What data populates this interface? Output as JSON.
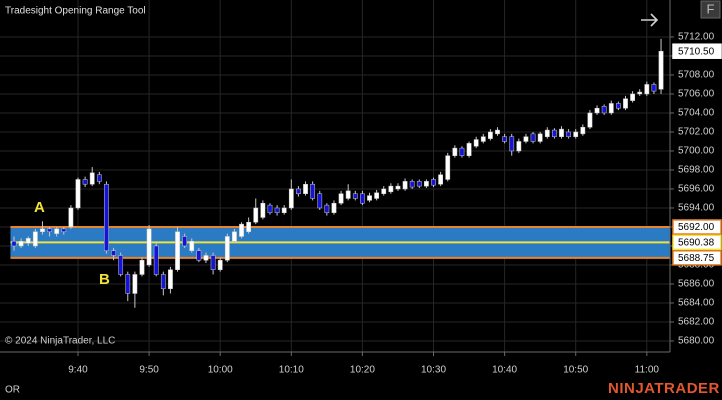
{
  "toolbar": {
    "button": "F"
  },
  "footer": {
    "copyright": "© 2024 NinjaTrader, LLC",
    "status": "OR",
    "brand": "NINJATRADER"
  },
  "annotations": [
    "A",
    "B"
  ],
  "chart_data": {
    "type": "candlestick",
    "title": "Tradesight Opening Range Tool",
    "up_color": "#ffffff",
    "down_color": "#1414d2",
    "wick_color": "#c8c8c8",
    "grid": true,
    "x": [
      571,
      572,
      573,
      574,
      575,
      576,
      577,
      578,
      579,
      580,
      581,
      582,
      583,
      584,
      585,
      586,
      587,
      588,
      589,
      590,
      591,
      592,
      593,
      594,
      595,
      596,
      597,
      598,
      599,
      600,
      601,
      602,
      603,
      604,
      605,
      606,
      607,
      608,
      609,
      610,
      611,
      612,
      613,
      614,
      615,
      616,
      617,
      618,
      619,
      620,
      621,
      622,
      623,
      624,
      625,
      626,
      627,
      628,
      629,
      630,
      631,
      632,
      633,
      634,
      635,
      636,
      637,
      638,
      639,
      640,
      641,
      642,
      643,
      644,
      645,
      646,
      647,
      648,
      649,
      650,
      651,
      652,
      653,
      654,
      655,
      656,
      657,
      658,
      659,
      660,
      661,
      662
    ],
    "open": [
      5690.5,
      5690.0,
      5690.3,
      5690.0,
      5691.5,
      5691.8,
      5691.3,
      5691.8,
      5692.0,
      5694.0,
      5697.0,
      5696.5,
      5697.5,
      5696.5,
      5689.5,
      5689.0,
      5687.0,
      5685.0,
      5687.0,
      5688.0,
      5690.0,
      5687.0,
      5685.5,
      5687.5,
      5691.0,
      5689.5,
      5689.5,
      5688.5,
      5689.0,
      5687.5,
      5688.5,
      5690.5,
      5691.0,
      5691.5,
      5692.5,
      5693.0,
      5694.3,
      5694.0,
      5693.5,
      5694.0,
      5696.0,
      5695.5,
      5696.5,
      5695.5,
      5694.3,
      5693.5,
      5694.5,
      5695.0,
      5695.5,
      5695.5,
      5694.8,
      5695.0,
      5695.5,
      5695.7,
      5696.0,
      5696.0,
      5696.8,
      5696.8,
      5696.3,
      5697.0,
      5696.5,
      5697.0,
      5699.5,
      5700.3,
      5699.5,
      5700.5,
      5701.0,
      5701.3,
      5701.8,
      5701.5,
      5701.5,
      5700.0,
      5701.0,
      5701.8,
      5701.0,
      5701.5,
      5702.2,
      5701.5,
      5702.0,
      5701.5,
      5701.8,
      5702.5,
      5704.0,
      5704.7,
      5704.0,
      5705.0,
      5704.5,
      5705.3,
      5706.0,
      5706.0,
      5707.0,
      5706.5
    ],
    "high": [
      5691.0,
      5690.8,
      5691.0,
      5691.8,
      5692.6,
      5692.0,
      5692.0,
      5692.0,
      5694.3,
      5697.2,
      5697.3,
      5698.3,
      5697.8,
      5696.8,
      5689.8,
      5689.3,
      5687.3,
      5687.3,
      5688.8,
      5692.2,
      5690.3,
      5687.3,
      5687.8,
      5692.0,
      5691.3,
      5690.8,
      5689.8,
      5689.3,
      5689.3,
      5688.8,
      5691.3,
      5691.8,
      5692.5,
      5693.0,
      5695.0,
      5694.8,
      5694.5,
      5694.3,
      5694.3,
      5697.0,
      5696.3,
      5696.8,
      5696.8,
      5695.8,
      5694.5,
      5694.8,
      5695.8,
      5696.5,
      5695.8,
      5695.8,
      5695.6,
      5695.9,
      5696.3,
      5696.6,
      5696.6,
      5697.1,
      5697.0,
      5697.0,
      5697.0,
      5697.2,
      5697.8,
      5699.8,
      5700.6,
      5700.5,
      5701.0,
      5701.5,
      5701.8,
      5702.3,
      5702.5,
      5701.8,
      5701.8,
      5701.3,
      5701.8,
      5702.0,
      5702.0,
      5702.5,
      5702.4,
      5702.6,
      5702.3,
      5702.3,
      5702.8,
      5704.3,
      5704.8,
      5704.9,
      5705.3,
      5705.2,
      5705.8,
      5706.3,
      5706.5,
      5707.3,
      5707.2,
      5711.8
    ],
    "low": [
      5689.5,
      5689.8,
      5690.0,
      5689.8,
      5691.2,
      5691.0,
      5691.0,
      5691.2,
      5691.8,
      5693.8,
      5696.2,
      5696.3,
      5696.5,
      5689.2,
      5688.5,
      5686.8,
      5684.2,
      5683.5,
      5686.8,
      5687.8,
      5686.8,
      5684.8,
      5685.0,
      5687.3,
      5689.8,
      5689.3,
      5688.3,
      5688.2,
      5687.0,
      5687.3,
      5688.3,
      5690.3,
      5690.8,
      5691.3,
      5692.3,
      5692.8,
      5693.3,
      5693.2,
      5693.3,
      5693.8,
      5695.2,
      5695.3,
      5694.8,
      5693.8,
      5693.2,
      5693.3,
      5694.3,
      5694.8,
      5694.8,
      5694.3,
      5694.6,
      5694.8,
      5695.3,
      5695.5,
      5695.8,
      5695.8,
      5696.0,
      5696.1,
      5696.1,
      5696.2,
      5696.3,
      5696.8,
      5699.3,
      5699.3,
      5699.3,
      5700.3,
      5700.8,
      5701.1,
      5701.6,
      5700.8,
      5699.5,
      5699.8,
      5700.8,
      5700.8,
      5700.8,
      5701.3,
      5701.3,
      5701.3,
      5701.3,
      5701.3,
      5701.6,
      5702.3,
      5703.8,
      5703.8,
      5703.8,
      5704.3,
      5704.3,
      5705.1,
      5705.8,
      5705.8,
      5706.0,
      5706.0
    ],
    "close": [
      5690.0,
      5690.5,
      5690.8,
      5691.5,
      5691.8,
      5691.5,
      5691.8,
      5691.5,
      5694.0,
      5697.0,
      5696.5,
      5697.7,
      5696.8,
      5689.5,
      5689.0,
      5687.0,
      5685.0,
      5687.0,
      5688.5,
      5691.8,
      5687.0,
      5685.5,
      5687.5,
      5691.5,
      5690.0,
      5690.5,
      5688.5,
      5689.0,
      5687.5,
      5688.5,
      5691.0,
      5691.5,
      5692.3,
      5692.5,
      5694.0,
      5694.5,
      5693.5,
      5693.5,
      5694.0,
      5696.0,
      5695.5,
      5696.5,
      5695.0,
      5694.0,
      5693.5,
      5694.5,
      5695.5,
      5695.8,
      5695.0,
      5694.5,
      5695.3,
      5695.6,
      5696.0,
      5696.3,
      5696.3,
      5696.8,
      5696.2,
      5696.3,
      5696.8,
      5696.4,
      5697.5,
      5699.5,
      5700.3,
      5699.5,
      5700.8,
      5701.2,
      5701.5,
      5702.0,
      5702.2,
      5701.0,
      5700.0,
      5701.0,
      5701.5,
      5701.0,
      5701.8,
      5702.2,
      5701.5,
      5702.3,
      5701.5,
      5702.0,
      5702.5,
      5704.0,
      5704.5,
      5704.0,
      5705.0,
      5704.5,
      5705.5,
      5706.0,
      5706.2,
      5707.0,
      5706.3,
      5710.5
    ],
    "xlim": [
      569.03,
      663.26
    ],
    "xticks": [
      {
        "value": 580,
        "label": "9:40"
      },
      {
        "value": 590,
        "label": "9:50"
      },
      {
        "value": 600,
        "label": "10:00"
      },
      {
        "value": 610,
        "label": "10:10"
      },
      {
        "value": 620,
        "label": "10:20"
      },
      {
        "value": 630,
        "label": "10:30"
      },
      {
        "value": 640,
        "label": "10:40"
      },
      {
        "value": 650,
        "label": "10:50"
      },
      {
        "value": 660,
        "label": "11:00"
      }
    ],
    "ylim": [
      5678.84,
      5715.89
    ],
    "yticks": [
      {
        "value": 5680,
        "label": "5680.00"
      },
      {
        "value": 5682,
        "label": "5682.00"
      },
      {
        "value": 5684,
        "label": "5684.00"
      },
      {
        "value": 5686,
        "label": "5686.00"
      },
      {
        "value": 5688,
        "label": "5688.00"
      },
      {
        "value": 5690,
        "label": "5690.00"
      },
      {
        "value": 5692,
        "label": "5692.00"
      },
      {
        "value": 5694,
        "label": "5694.00"
      },
      {
        "value": 5696,
        "label": "5696.00"
      },
      {
        "value": 5698,
        "label": "5698.00"
      },
      {
        "value": 5700,
        "label": "5700.00"
      },
      {
        "value": 5702,
        "label": "5702.00"
      },
      {
        "value": 5704,
        "label": "5704.00"
      },
      {
        "value": 5706,
        "label": "5706.00"
      },
      {
        "value": 5708,
        "label": "5708.00"
      },
      {
        "value": 5710,
        "label": "5710.00"
      },
      {
        "value": 5712,
        "label": "5712.00"
      }
    ],
    "opening_range": {
      "high": {
        "value": 5692,
        "label": "5692.00"
      },
      "mid": {
        "value": 5690.38,
        "label": "5690.38"
      },
      "low": {
        "value": 5688.75,
        "label": "5688.75"
      },
      "fill": "#2a7bc4",
      "edge_color": "#e8842c",
      "mid_color": "#f2e33a"
    },
    "last_price": {
      "value": 5710.5,
      "label": "5710.50"
    }
  }
}
